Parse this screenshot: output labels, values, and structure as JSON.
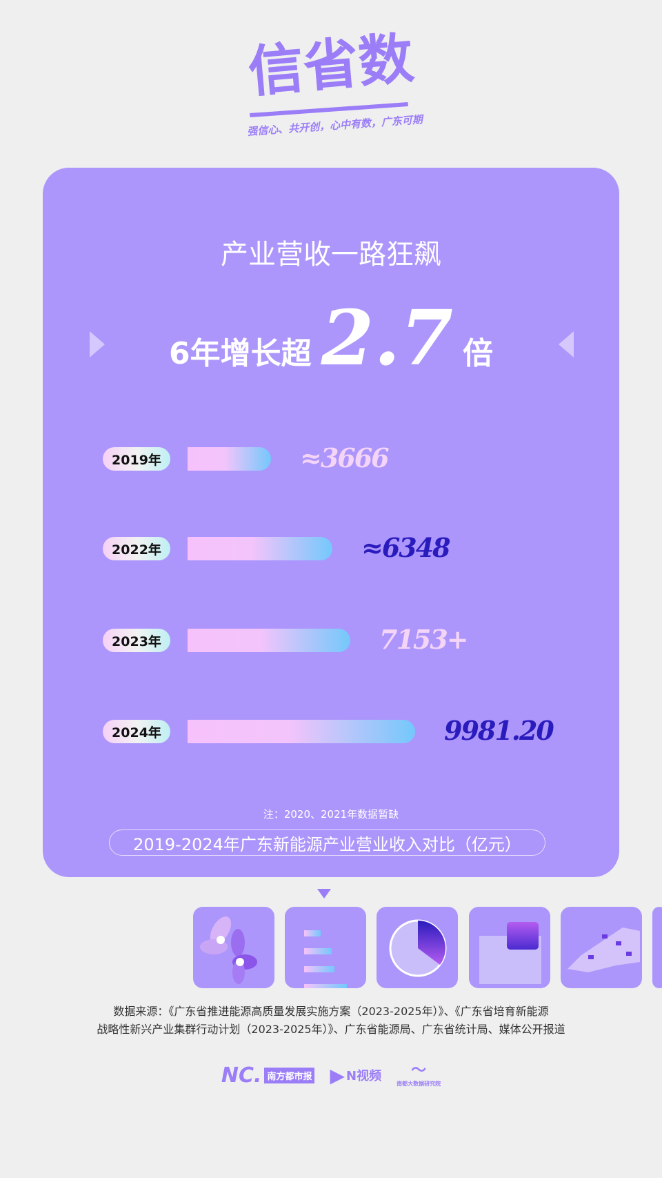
{
  "logo": {
    "title": "信省数",
    "slogan": "强信心、共开创，心中有数，广东可期"
  },
  "headline": {
    "line1": "产业营收一路狂飙",
    "prefix": "6年增长超",
    "multiplier": "2.7",
    "suffix": "倍"
  },
  "colors": {
    "card": "#ac96fb",
    "background": "#efeff0",
    "dark_value": "#2a1bbd",
    "light_value": "#f5d5f7"
  },
  "chart_data": {
    "type": "bar",
    "orientation": "horizontal",
    "categories": [
      "2019年",
      "2022年",
      "2023年",
      "2024年"
    ],
    "values": [
      3666,
      6348,
      7153,
      9981.2
    ],
    "labels": [
      "≈3666",
      "≈6348",
      "7153+",
      "9981.20"
    ],
    "title": "2019-2024年广东新能源产业营业收入对比（亿元）",
    "note": "注：2020、2021年数据暂缺"
  },
  "source": {
    "line1": "数据来源：《广东省推进能源高质量发展实施方案（2023-2025年）》、《广东省培育新能源",
    "line2": "战略性新兴产业集群行动计划（2023-2025年）》、广东省能源局、广东省统计局、媒体公开报道"
  },
  "brands": {
    "nd": "南方都市报",
    "nvideo": "N视频",
    "research": "南都大数据研究院"
  }
}
